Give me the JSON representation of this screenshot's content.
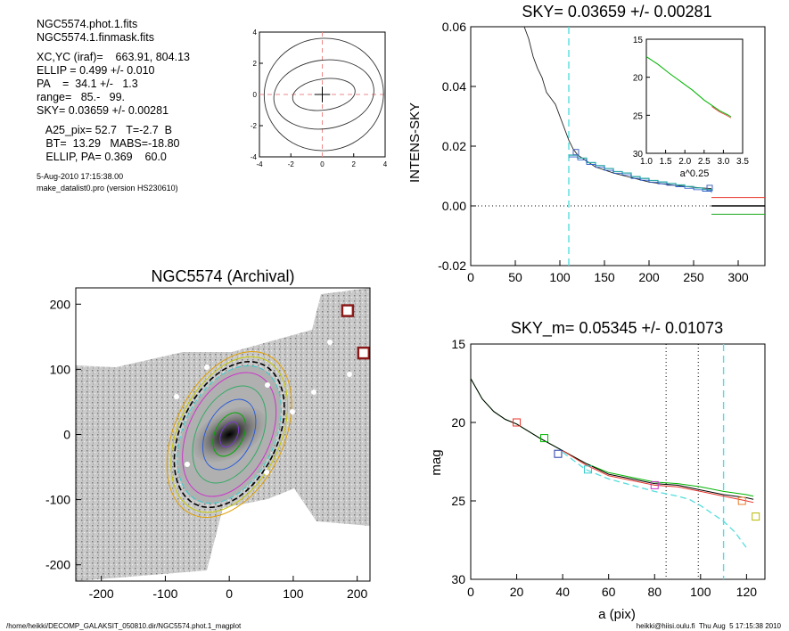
{
  "info": {
    "lines": [
      "NGC5574.phot.1.fits",
      "NGC5574.1.finmask.fits",
      "",
      "XC,YC (iraf)=    663.91, 804.13",
      "ELLIP = 0.499 +/- 0.010",
      "PA    =  34.1 +/-   1.3",
      "range=   85.-   99.",
      "SKY= 0.03659 +/- 0.00281",
      "",
      "   A25_pix= 52.7   T=-2.7  B",
      "   BT=  13.29   MABS=-18.80",
      "   ELLIP, PA= 0.369    60.0"
    ],
    "small_lines": [
      "5-Aug-2010 17:15:38.00",
      "make_datalist0.pro (version HS230610)"
    ]
  },
  "footer": {
    "left": "/home/heikki/DECOMP_GALAKSIT_050810.dir/NGC5574.phot.1_magplot",
    "right": "heikki@hiisi.oulu.fi  Thu Aug  5 17:15:38 2010"
  },
  "chart_data": [
    {
      "id": "center-contour",
      "type": "line",
      "title": "",
      "xlim": [
        -4,
        4
      ],
      "ylim": [
        -4,
        4
      ],
      "x_ticks": [
        -4,
        -2,
        0,
        2,
        4
      ],
      "y_ticks": [
        -4,
        -2,
        0,
        2,
        4
      ],
      "contours": [
        {
          "rx": 2.0,
          "ry": 1.0
        },
        {
          "rx": 3.2,
          "ry": 2.2
        },
        {
          "rx": 3.8,
          "ry": 3.6
        }
      ],
      "crosshair": {
        "x": 0,
        "y": 0
      }
    },
    {
      "id": "sky-profile",
      "type": "line",
      "title": "SKY= 0.03659 +/- 0.00281",
      "ylabel": "INTENS-SKY",
      "xlabel": "",
      "xlim": [
        0,
        330
      ],
      "ylim": [
        -0.02,
        0.06
      ],
      "x_ticks": [
        0,
        50,
        100,
        150,
        200,
        250,
        300
      ],
      "y_ticks": [
        -0.02,
        0.0,
        0.02,
        0.04,
        0.06
      ],
      "y_tick_labels": [
        "-0.02",
        "0.00",
        "0.02",
        "0.04",
        "0.06"
      ],
      "vline_x": 110,
      "black_profile": {
        "x": [
          60,
          65,
          70,
          75,
          80,
          85,
          90,
          95,
          100,
          105,
          110,
          115,
          120,
          130,
          140,
          160,
          180,
          200,
          220,
          240,
          260,
          270
        ],
        "y": [
          0.06,
          0.056,
          0.05,
          0.046,
          0.043,
          0.038,
          0.036,
          0.034,
          0.03,
          0.026,
          0.022,
          0.019,
          0.017,
          0.015,
          0.013,
          0.011,
          0.0095,
          0.008,
          0.0072,
          0.0065,
          0.006,
          0.0058
        ]
      },
      "step_profile": {
        "x": [
          110,
          120,
          130,
          140,
          150,
          160,
          170,
          180,
          190,
          200,
          210,
          220,
          230,
          240,
          250,
          260,
          270
        ],
        "y": [
          0.017,
          0.016,
          0.0145,
          0.0135,
          0.0125,
          0.0115,
          0.011,
          0.0098,
          0.0092,
          0.0085,
          0.008,
          0.0075,
          0.007,
          0.0065,
          0.006,
          0.0055,
          0.005
        ]
      },
      "squares": [
        {
          "x": 118,
          "y": 0.018
        },
        {
          "x": 268,
          "y": 0.006
        }
      ],
      "sky_levels": [
        {
          "name": "red",
          "y": 0.0028
        },
        {
          "name": "black",
          "y": 0.0
        },
        {
          "name": "green",
          "y": -0.0028
        }
      ],
      "inset": {
        "xlim": [
          1.0,
          3.5
        ],
        "ylim": [
          15,
          30
        ],
        "xlabel": "a^0.25",
        "x_ticks": [
          1.0,
          1.5,
          2.0,
          2.5,
          3.0,
          3.5
        ],
        "x_tick_labels": [
          "1.0",
          "1.5",
          "2.0",
          "2.5",
          "3.0",
          "3.5"
        ],
        "y_ticks": [
          15,
          20,
          25,
          30
        ],
        "x": [
          1.0,
          1.3,
          1.6,
          1.9,
          2.2,
          2.5,
          2.7,
          2.9,
          3.1,
          3.2
        ],
        "y": [
          17.3,
          18.3,
          19.5,
          20.6,
          21.7,
          23.0,
          23.7,
          24.4,
          24.9,
          25.2
        ]
      }
    },
    {
      "id": "galaxy-image",
      "type": "scatter",
      "title": "NGC5574 (Archival)",
      "xlim": [
        -240,
        220
      ],
      "ylim": [
        -225,
        225
      ],
      "x_ticks": [
        -200,
        -100,
        0,
        100,
        200
      ],
      "y_ticks": [
        -200,
        -100,
        0,
        100,
        200
      ],
      "markers": [
        {
          "x": 185,
          "y": 190
        },
        {
          "x": 210,
          "y": 125
        }
      ],
      "ellipse_pa_deg": 34.1
    },
    {
      "id": "mag-profile",
      "type": "line",
      "title": "SKY_m=  0.05345 +/- 0.01073",
      "xlabel": "a (pix)",
      "ylabel": "mag",
      "xlim": [
        0,
        128
      ],
      "ylim": [
        30,
        15
      ],
      "x_ticks": [
        0,
        20,
        40,
        60,
        80,
        100,
        120
      ],
      "y_ticks": [
        15,
        20,
        25,
        30
      ],
      "dotted_vlines": [
        85,
        99
      ],
      "dashed_vline": 110,
      "series": [
        {
          "name": "green",
          "color": "#00b400",
          "x": [
            0,
            5,
            10,
            15,
            20,
            30,
            40,
            50,
            60,
            70,
            80,
            90,
            100,
            110,
            120,
            123
          ],
          "y": [
            17.2,
            18.5,
            19.3,
            19.8,
            20.1,
            21.0,
            21.8,
            22.6,
            23.2,
            23.5,
            23.8,
            23.9,
            24.1,
            24.4,
            24.6,
            24.7
          ]
        },
        {
          "name": "black",
          "color": "#000000",
          "x": [
            0,
            5,
            10,
            15,
            20,
            30,
            40,
            50,
            60,
            70,
            80,
            90,
            100,
            110,
            120,
            123
          ],
          "y": [
            17.2,
            18.5,
            19.3,
            19.8,
            20.1,
            21.0,
            21.8,
            22.6,
            23.3,
            23.6,
            23.9,
            24.0,
            24.3,
            24.6,
            24.8,
            24.9
          ]
        },
        {
          "name": "red",
          "color": "#e8342c",
          "x": [
            40,
            50,
            60,
            70,
            80,
            90,
            100,
            110,
            120,
            123
          ],
          "y": [
            21.8,
            22.7,
            23.4,
            23.7,
            24.0,
            24.1,
            24.4,
            24.7,
            25.0,
            25.1
          ]
        }
      ],
      "cyan_dashed": {
        "x": [
          40,
          50,
          60,
          70,
          80,
          90,
          95,
          100,
          105,
          110,
          115,
          120
        ],
        "y": [
          21.9,
          23.0,
          23.6,
          24.0,
          24.4,
          24.7,
          24.9,
          25.3,
          25.8,
          26.3,
          27.0,
          28.0
        ]
      },
      "squares": [
        {
          "x": 20,
          "y": 20.0,
          "color": "#e8342c"
        },
        {
          "x": 32,
          "y": 21.0,
          "color": "#00b400"
        },
        {
          "x": 38,
          "y": 22.0,
          "color": "#1e3aa8"
        },
        {
          "x": 51,
          "y": 23.0,
          "color": "#33cccc"
        },
        {
          "x": 80,
          "y": 24.0,
          "color": "#cc33cc"
        },
        {
          "x": 118,
          "y": 25.0,
          "color": "#e87d2c"
        },
        {
          "x": 124,
          "y": 26.0,
          "color": "#b8b800"
        }
      ]
    }
  ]
}
